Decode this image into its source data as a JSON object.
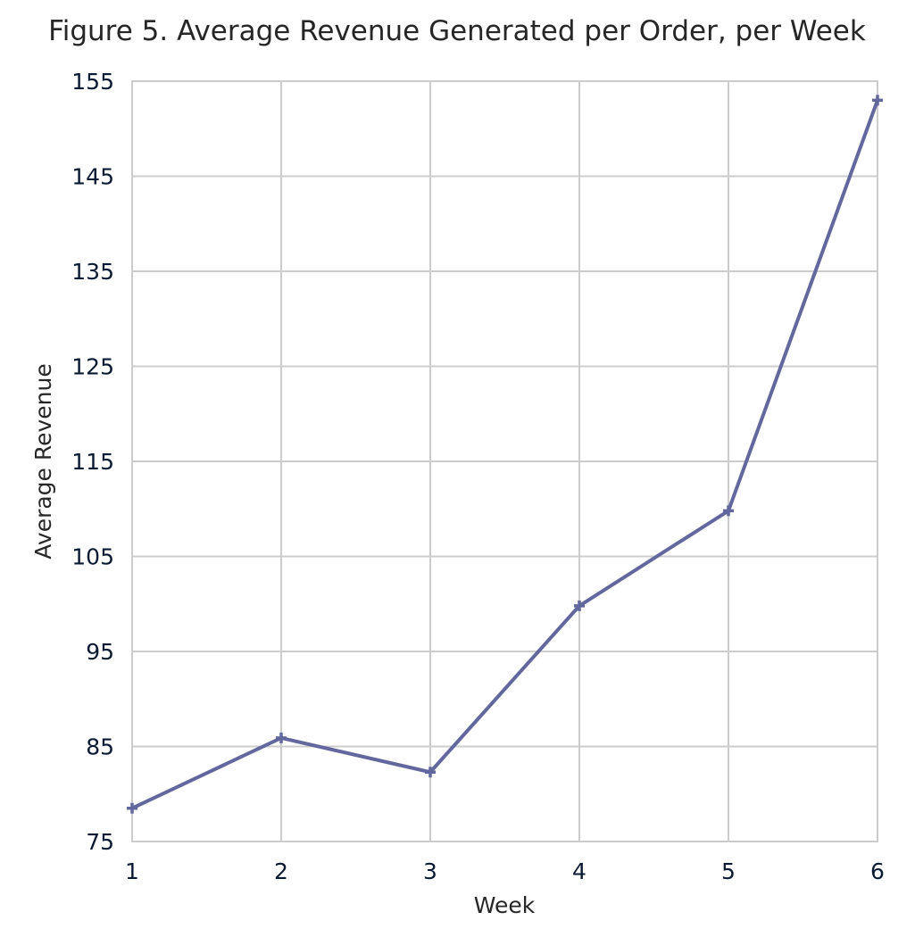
{
  "chart_data": {
    "type": "line",
    "title": "Figure 5. Average Revenue Generated per Order, per Week",
    "xlabel": "Week",
    "ylabel": "Average Revenue",
    "x": [
      1,
      2,
      3,
      4,
      5,
      6
    ],
    "xticks": [
      1,
      2,
      3,
      4,
      5,
      6
    ],
    "yticks": [
      75,
      85,
      95,
      105,
      115,
      125,
      135,
      145,
      155
    ],
    "xlim": [
      1,
      6
    ],
    "ylim": [
      75,
      155
    ],
    "grid": true,
    "series": [
      {
        "values": [
          78.5,
          85.9,
          82.3,
          99.8,
          109.8,
          153.0
        ],
        "color": "#62679e",
        "marker": "plus"
      }
    ]
  }
}
